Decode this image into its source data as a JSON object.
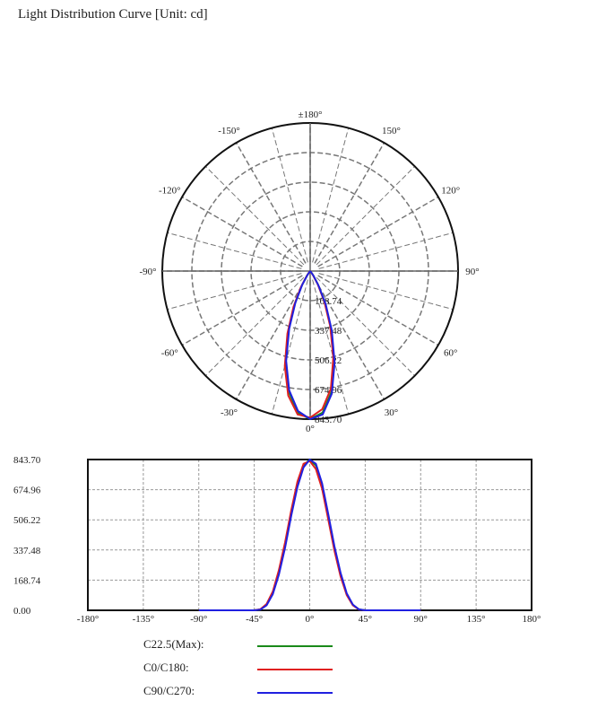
{
  "title": "Light Distribution Curve [Unit: cd]",
  "chart_data": [
    {
      "type": "polar",
      "unit": "cd",
      "angle_labels": [
        "±180°",
        "150°",
        "120°",
        "90°",
        "60°",
        "30°",
        "0°",
        "-30°",
        "-60°",
        "-90°",
        "-120°",
        "-150°"
      ],
      "radial_ticks": [
        "168.74",
        "337.48",
        "506.22",
        "674.96",
        "843.70"
      ],
      "rmax": 843.7
    },
    {
      "type": "line",
      "xlim": [
        -180,
        180
      ],
      "ylim": [
        0,
        843.7
      ],
      "x_ticks": [
        "-180°",
        "-135°",
        "-90°",
        "-45°",
        "0°",
        "45°",
        "90°",
        "135°",
        "180°"
      ],
      "y_ticks": [
        "0.00",
        "168.74",
        "337.48",
        "506.22",
        "674.96",
        "843.70"
      ],
      "grid": true,
      "x": [
        -90,
        -45,
        -40,
        -35,
        -30,
        -25,
        -20,
        -15,
        -10,
        -5,
        0,
        5,
        10,
        15,
        20,
        25,
        30,
        35,
        40,
        45,
        90
      ],
      "series": [
        {
          "name": "C22.5(Max):",
          "color": "#1a8a1a",
          "values": [
            0,
            0,
            5,
            30,
            95,
            210,
            360,
            540,
            700,
            810,
            843,
            810,
            700,
            530,
            350,
            200,
            90,
            30,
            5,
            0,
            0
          ]
        },
        {
          "name": "C0/C180:",
          "color": "#e02020",
          "values": [
            0,
            0,
            6,
            35,
            105,
            225,
            380,
            560,
            720,
            820,
            835,
            790,
            680,
            510,
            335,
            190,
            85,
            28,
            4,
            0,
            0
          ]
        },
        {
          "name": "C90/C270:",
          "color": "#2020e0",
          "values": [
            0,
            0,
            4,
            28,
            90,
            200,
            350,
            530,
            690,
            800,
            843,
            820,
            710,
            540,
            360,
            210,
            95,
            32,
            5,
            0,
            0
          ]
        }
      ]
    }
  ]
}
